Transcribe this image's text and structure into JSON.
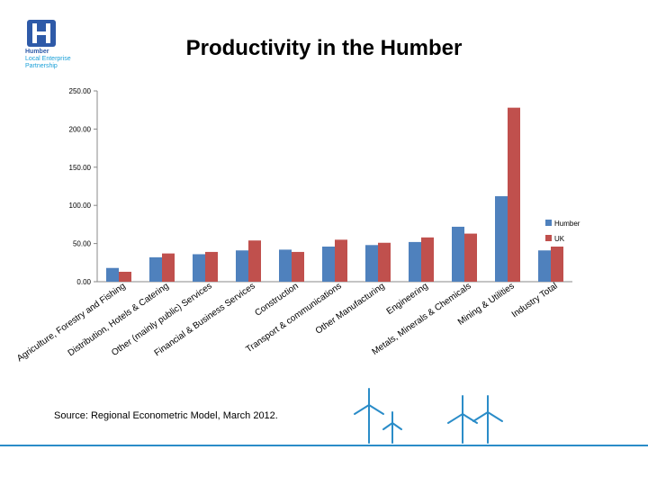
{
  "logo": {
    "line1": "Humber",
    "line2": "Local Enterprise",
    "line3": "Partnership"
  },
  "title": "Productivity in the Humber",
  "source": "Source: Regional Econometric Model, March 2012.",
  "colors": {
    "humber": "#4f81bd",
    "uk": "#c0504d",
    "accent_line": "#2a8cc8"
  },
  "chart_data": {
    "type": "bar",
    "title": "Productivity in the Humber",
    "xlabel": "",
    "ylabel": "",
    "ylim": [
      0,
      250
    ],
    "yticks": [
      "0.00",
      "50.00",
      "100.00",
      "150.00",
      "200.00",
      "250.00"
    ],
    "grid": false,
    "legend_position": "right",
    "categories": [
      "Agriculture, Forestry and Fishing",
      "Distribution, Hotels & Catering",
      "Other (mainly public) Services",
      "Financial & Business Services",
      "Construction",
      "Transport & communications",
      "Other Manufacturing",
      "Engineering",
      "Metals, Minerals & Chemicals",
      "Mining & Utilities",
      "Industry Total"
    ],
    "series": [
      {
        "name": "Humber",
        "values": [
          18,
          32,
          36,
          41,
          42,
          46,
          48,
          52,
          72,
          112,
          41
        ]
      },
      {
        "name": "UK",
        "values": [
          13,
          37,
          39,
          54,
          39,
          55,
          51,
          58,
          63,
          228,
          46
        ]
      }
    ]
  }
}
